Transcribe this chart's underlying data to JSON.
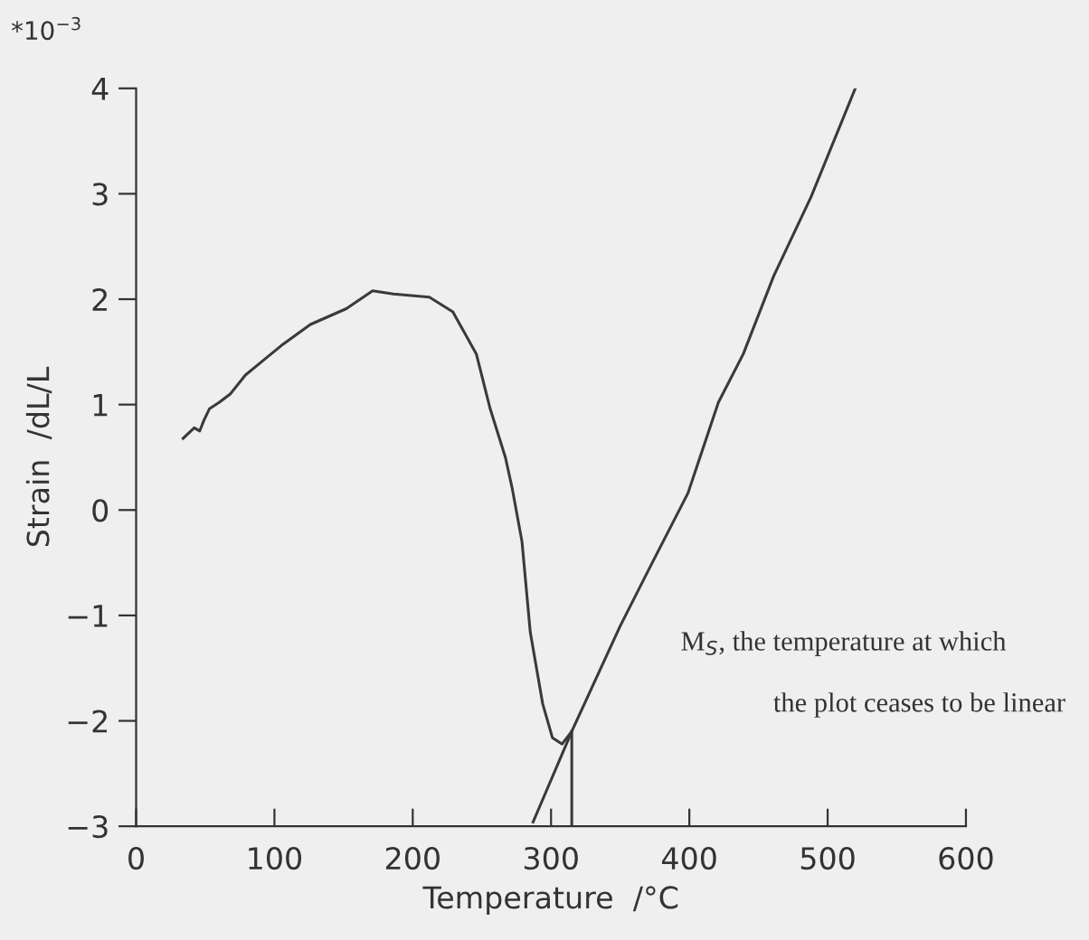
{
  "chart_data": {
    "type": "line",
    "xlabel": "Temperature  /°C",
    "ylabel": "Strain  /dL/L",
    "xlim": [
      0,
      600
    ],
    "ylim": [
      -3,
      4
    ],
    "xticks": [
      0,
      100,
      200,
      300,
      400,
      500,
      600
    ],
    "yticks": [
      -3,
      -2,
      -1,
      0,
      1,
      2,
      3,
      4
    ],
    "grid": false,
    "legend": false,
    "marker": "none",
    "line_style": "solid",
    "series": [
      {
        "color": "#3a3a3a",
        "x": [
          34,
          42,
          46,
          49,
          53,
          60,
          68,
          79,
          92,
          105,
          126,
          152,
          171,
          186,
          212,
          229,
          246,
          256,
          267,
          272,
          279,
          285,
          294,
          301,
          308,
          315,
          350,
          372,
          399,
          421,
          439,
          461,
          488,
          520
        ],
        "values": [
          0.68,
          0.78,
          0.75,
          0.85,
          0.96,
          1.02,
          1.1,
          1.28,
          1.42,
          1.56,
          1.76,
          1.91,
          2.08,
          2.05,
          2.02,
          1.88,
          1.48,
          0.96,
          0.5,
          0.2,
          -0.3,
          -1.16,
          -1.84,
          -2.16,
          -2.22,
          -2.1,
          -1.1,
          -0.53,
          0.16,
          1.02,
          1.48,
          2.22,
          2.97,
          4.0
        ]
      },
      {
        "color": "#3a3a3a",
        "x": [
          287,
          315
        ],
        "values": [
          -2.96,
          -2.1
        ]
      },
      {
        "color": "#3a3a3a",
        "x": [
          315,
          315
        ],
        "values": [
          -3,
          -2.1
        ]
      }
    ],
    "annotations": [
      "*10$^{−3}$",
      "M$_{S}$, the temperature at which",
      "the plot ceases to be linear"
    ]
  }
}
